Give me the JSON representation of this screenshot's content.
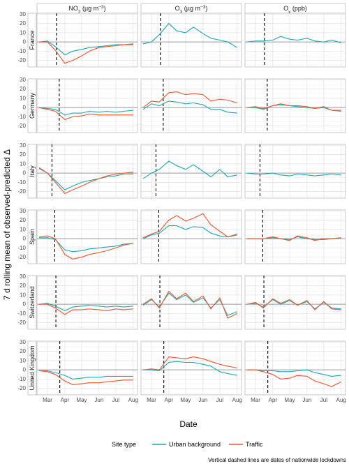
{
  "chart_data": {
    "type": "line",
    "ylabel": "7 d rolling mean of observed-predicted Δ",
    "xlabel": "Date",
    "caption": "Vertical dashed lines are dates of nationwide lockdowns",
    "legend_title": "Site type",
    "legend_position": "bottom",
    "grid": true,
    "x_ticks": [
      "Mar",
      "Apr",
      "May",
      "Jun",
      "Jul",
      "Aug"
    ],
    "x_range": [
      "2020-02-15",
      "2020-08-05"
    ],
    "y_ticks": [
      -20,
      -10,
      0,
      10,
      20,
      30
    ],
    "ylim": [
      -27,
      31
    ],
    "columns": [
      "NO₂ (µg m⁻³)",
      "O₃ (µg m⁻³)",
      "Oₓ (ppb)"
    ],
    "rows": [
      "France",
      "Germany",
      "Italy",
      "Spain",
      "Switzerland",
      "United Kingdom"
    ],
    "lockdowns": {
      "France": "2020-03-17",
      "Germany": "2020-03-22",
      "Italy": "2020-03-09",
      "Spain": "2020-03-14",
      "Switzerland": "2020-03-16",
      "United Kingdom": "2020-03-23"
    },
    "series": [
      {
        "name": "Urban background",
        "color": "#17a9b5"
      },
      {
        "name": "Traffic",
        "color": "#f2542d"
      }
    ],
    "x": [
      "2020-02-15",
      "2020-03-01",
      "2020-03-15",
      "2020-04-01",
      "2020-04-15",
      "2020-05-01",
      "2020-05-15",
      "2020-06-01",
      "2020-06-15",
      "2020-07-01",
      "2020-07-15",
      "2020-08-01"
    ],
    "panels": [
      {
        "row": "France",
        "col": "NO₂ (µg m⁻³)",
        "Urban background": [
          0,
          1,
          -5,
          -14,
          -10,
          -8,
          -6,
          -5,
          -4,
          -3,
          -3,
          -2
        ],
        "Traffic": [
          0,
          0,
          -9,
          -23,
          -20,
          -15,
          -10,
          -6,
          -5,
          -4,
          -3,
          -3
        ]
      },
      {
        "row": "France",
        "col": "O₃ (µg m⁻³)",
        "Urban background": [
          -2,
          0,
          8,
          20,
          12,
          10,
          16,
          9,
          4,
          2,
          0,
          -6
        ]
      },
      {
        "row": "France",
        "col": "Oₓ (ppb)",
        "Urban background": [
          0,
          1,
          1,
          2,
          6,
          3,
          2,
          4,
          1,
          0,
          2,
          -1
        ]
      },
      {
        "row": "Germany",
        "col": "NO₂ (µg m⁻³)",
        "Urban background": [
          0,
          -1,
          -2,
          -8,
          -6,
          -6,
          -4,
          -5,
          -4,
          -5,
          -4,
          -3
        ],
        "Traffic": [
          0,
          -2,
          -4,
          -13,
          -10,
          -9,
          -7,
          -8,
          -8,
          -8,
          -8,
          -8
        ]
      },
      {
        "row": "Germany",
        "col": "O₃ (µg m⁻³)",
        "Urban background": [
          -2,
          4,
          2,
          7,
          6,
          4,
          5,
          3,
          -2,
          -2,
          -5,
          -6
        ],
        "Traffic": [
          0,
          7,
          6,
          16,
          17,
          14,
          15,
          14,
          7,
          9,
          8,
          5
        ]
      },
      {
        "row": "Germany",
        "col": "Oₓ (ppb)",
        "Urban background": [
          0,
          0,
          -2,
          2,
          3,
          2,
          1,
          0,
          -1,
          0,
          -3,
          -4
        ],
        "Traffic": [
          0,
          1,
          -1,
          2,
          4,
          2,
          2,
          1,
          -1,
          1,
          -3,
          -3
        ]
      },
      {
        "row": "Italy",
        "col": "NO₂ (µg m⁻³)",
        "Urban background": [
          5,
          0,
          -8,
          -18,
          -14,
          -10,
          -8,
          -6,
          -4,
          -3,
          -1,
          -1
        ],
        "Traffic": [
          6,
          0,
          -10,
          -22,
          -18,
          -14,
          -10,
          -6,
          -3,
          -1,
          0,
          1
        ]
      },
      {
        "row": "Italy",
        "col": "O₃ (µg m⁻³)",
        "Urban background": [
          -6,
          0,
          4,
          13,
          8,
          4,
          9,
          2,
          -4,
          4,
          -4,
          -2
        ]
      },
      {
        "row": "Italy",
        "col": "Oₓ (ppb)",
        "Urban background": [
          0,
          -1,
          -1,
          0,
          -2,
          -3,
          -1,
          -2,
          -3,
          -2,
          -1,
          -2
        ]
      },
      {
        "row": "Spain",
        "col": "NO₂ (µg m⁻³)",
        "Urban background": [
          1,
          1,
          -1,
          -12,
          -14,
          -13,
          -11,
          -10,
          -9,
          -8,
          -6,
          -5
        ],
        "Traffic": [
          2,
          3,
          0,
          -17,
          -22,
          -20,
          -17,
          -15,
          -13,
          -10,
          -7,
          -5
        ]
      },
      {
        "row": "Spain",
        "col": "O₃ (µg m⁻³)",
        "Urban background": [
          0,
          4,
          6,
          14,
          14,
          10,
          13,
          12,
          6,
          3,
          2,
          5
        ],
        "Traffic": [
          1,
          5,
          8,
          20,
          25,
          19,
          22,
          27,
          15,
          8,
          2,
          4
        ]
      },
      {
        "row": "Spain",
        "col": "Oₓ (ppb)",
        "Urban background": [
          0,
          0,
          0,
          1,
          0,
          -1,
          2,
          0,
          -1,
          -1,
          0,
          1
        ],
        "Traffic": [
          0,
          0,
          0,
          2,
          0,
          -2,
          3,
          1,
          -2,
          0,
          0,
          1
        ]
      },
      {
        "row": "Switzerland",
        "col": "NO₂ (µg m⁻³)",
        "Urban background": [
          0,
          1,
          -2,
          -7,
          -3,
          -2,
          -1,
          -2,
          -3,
          -2,
          -3,
          -2
        ],
        "Traffic": [
          0,
          0,
          -4,
          -11,
          -6,
          -6,
          -5,
          -6,
          -7,
          -5,
          -6,
          -5
        ]
      },
      {
        "row": "Switzerland",
        "col": "O₃ (µg m⁻³)",
        "Urban background": [
          -1,
          5,
          -3,
          12,
          5,
          10,
          2,
          7,
          -4,
          5,
          -12,
          -8
        ],
        "Traffic": [
          0,
          6,
          -4,
          14,
          6,
          12,
          3,
          9,
          -5,
          7,
          -15,
          -10
        ]
      },
      {
        "row": "Switzerland",
        "col": "Oₓ (ppb)",
        "Urban background": [
          0,
          1,
          -3,
          5,
          0,
          4,
          -1,
          3,
          -5,
          2,
          -4,
          -5
        ],
        "Traffic": [
          0,
          2,
          -4,
          6,
          1,
          5,
          -1,
          4,
          -6,
          3,
          -5,
          -6
        ]
      },
      {
        "row": "United Kingdom",
        "col": "NO₂ (µg m⁻³)",
        "Urban background": [
          -1,
          -1,
          -3,
          -6,
          -10,
          -9,
          -8,
          -8,
          -7,
          -7,
          -7,
          -7
        ],
        "Traffic": [
          -1,
          -2,
          -5,
          -12,
          -16,
          -15,
          -14,
          -14,
          -13,
          -12,
          -11,
          -11
        ],
        "note": ""
      },
      {
        "row": "United Kingdom",
        "col": "O₃ (µg m⁻³)",
        "Urban background": [
          0,
          0,
          -1,
          8,
          9,
          8,
          8,
          6,
          4,
          -2,
          -4,
          -6
        ],
        "Traffic": [
          0,
          1,
          0,
          14,
          13,
          12,
          14,
          12,
          9,
          6,
          4,
          2
        ]
      },
      {
        "row": "United Kingdom",
        "col": "Oₓ (ppb)",
        "Urban background": [
          0,
          0,
          -1,
          -1,
          -2,
          -2,
          -1,
          0,
          -3,
          -5,
          -7,
          -6
        ],
        "Traffic": [
          0,
          0,
          -2,
          -5,
          -10,
          -9,
          -6,
          -7,
          -12,
          -15,
          -18,
          -13
        ]
      }
    ]
  }
}
